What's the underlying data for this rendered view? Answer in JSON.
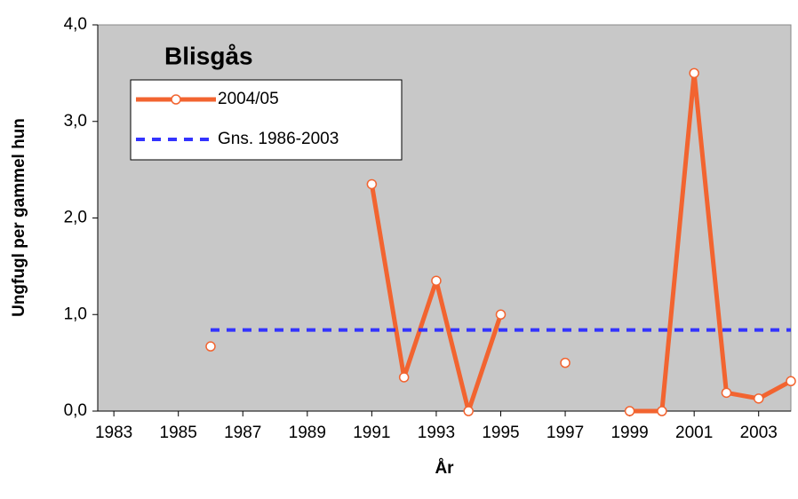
{
  "chart_data": {
    "type": "line",
    "title": "Blisgås",
    "x_label": "År",
    "y_label": "Ungfugl per gammel hun",
    "x": [
      1986,
      1987,
      1988,
      1989,
      1990,
      1991,
      1992,
      1993,
      1994,
      1995,
      1996,
      1997,
      1998,
      1999,
      2000,
      2001,
      2002,
      2003,
      2004
    ],
    "series": [
      {
        "name": "2004/05",
        "color": "#f26430",
        "marker": true,
        "dashed": false,
        "values": [
          0.67,
          null,
          null,
          null,
          null,
          2.35,
          0.35,
          1.35,
          0.0,
          1.0,
          null,
          0.5,
          null,
          0.0,
          0.0,
          3.5,
          0.19,
          0.13,
          0.31
        ]
      },
      {
        "name": "Gns. 1986-2003",
        "color": "#3333ff",
        "marker": false,
        "dashed": true,
        "values": [
          0.84,
          0.84,
          0.84,
          0.84,
          0.84,
          0.84,
          0.84,
          0.84,
          0.84,
          0.84,
          0.84,
          0.84,
          0.84,
          0.84,
          0.84,
          0.84,
          0.84,
          0.84,
          0.84
        ]
      }
    ],
    "xlim": [
      1982.5,
      2004
    ],
    "xticks": [
      1983,
      1985,
      1987,
      1989,
      1991,
      1993,
      1995,
      1997,
      1999,
      2001,
      2003
    ],
    "ylim": [
      0,
      4
    ],
    "yticks": [
      {
        "value": 0,
        "label": "0,0"
      },
      {
        "value": 1,
        "label": "1,0"
      },
      {
        "value": 2,
        "label": "2,0"
      },
      {
        "value": 3,
        "label": "3,0"
      },
      {
        "value": 4,
        "label": "4,0"
      }
    ],
    "plot_background": "#c8c8c8"
  }
}
